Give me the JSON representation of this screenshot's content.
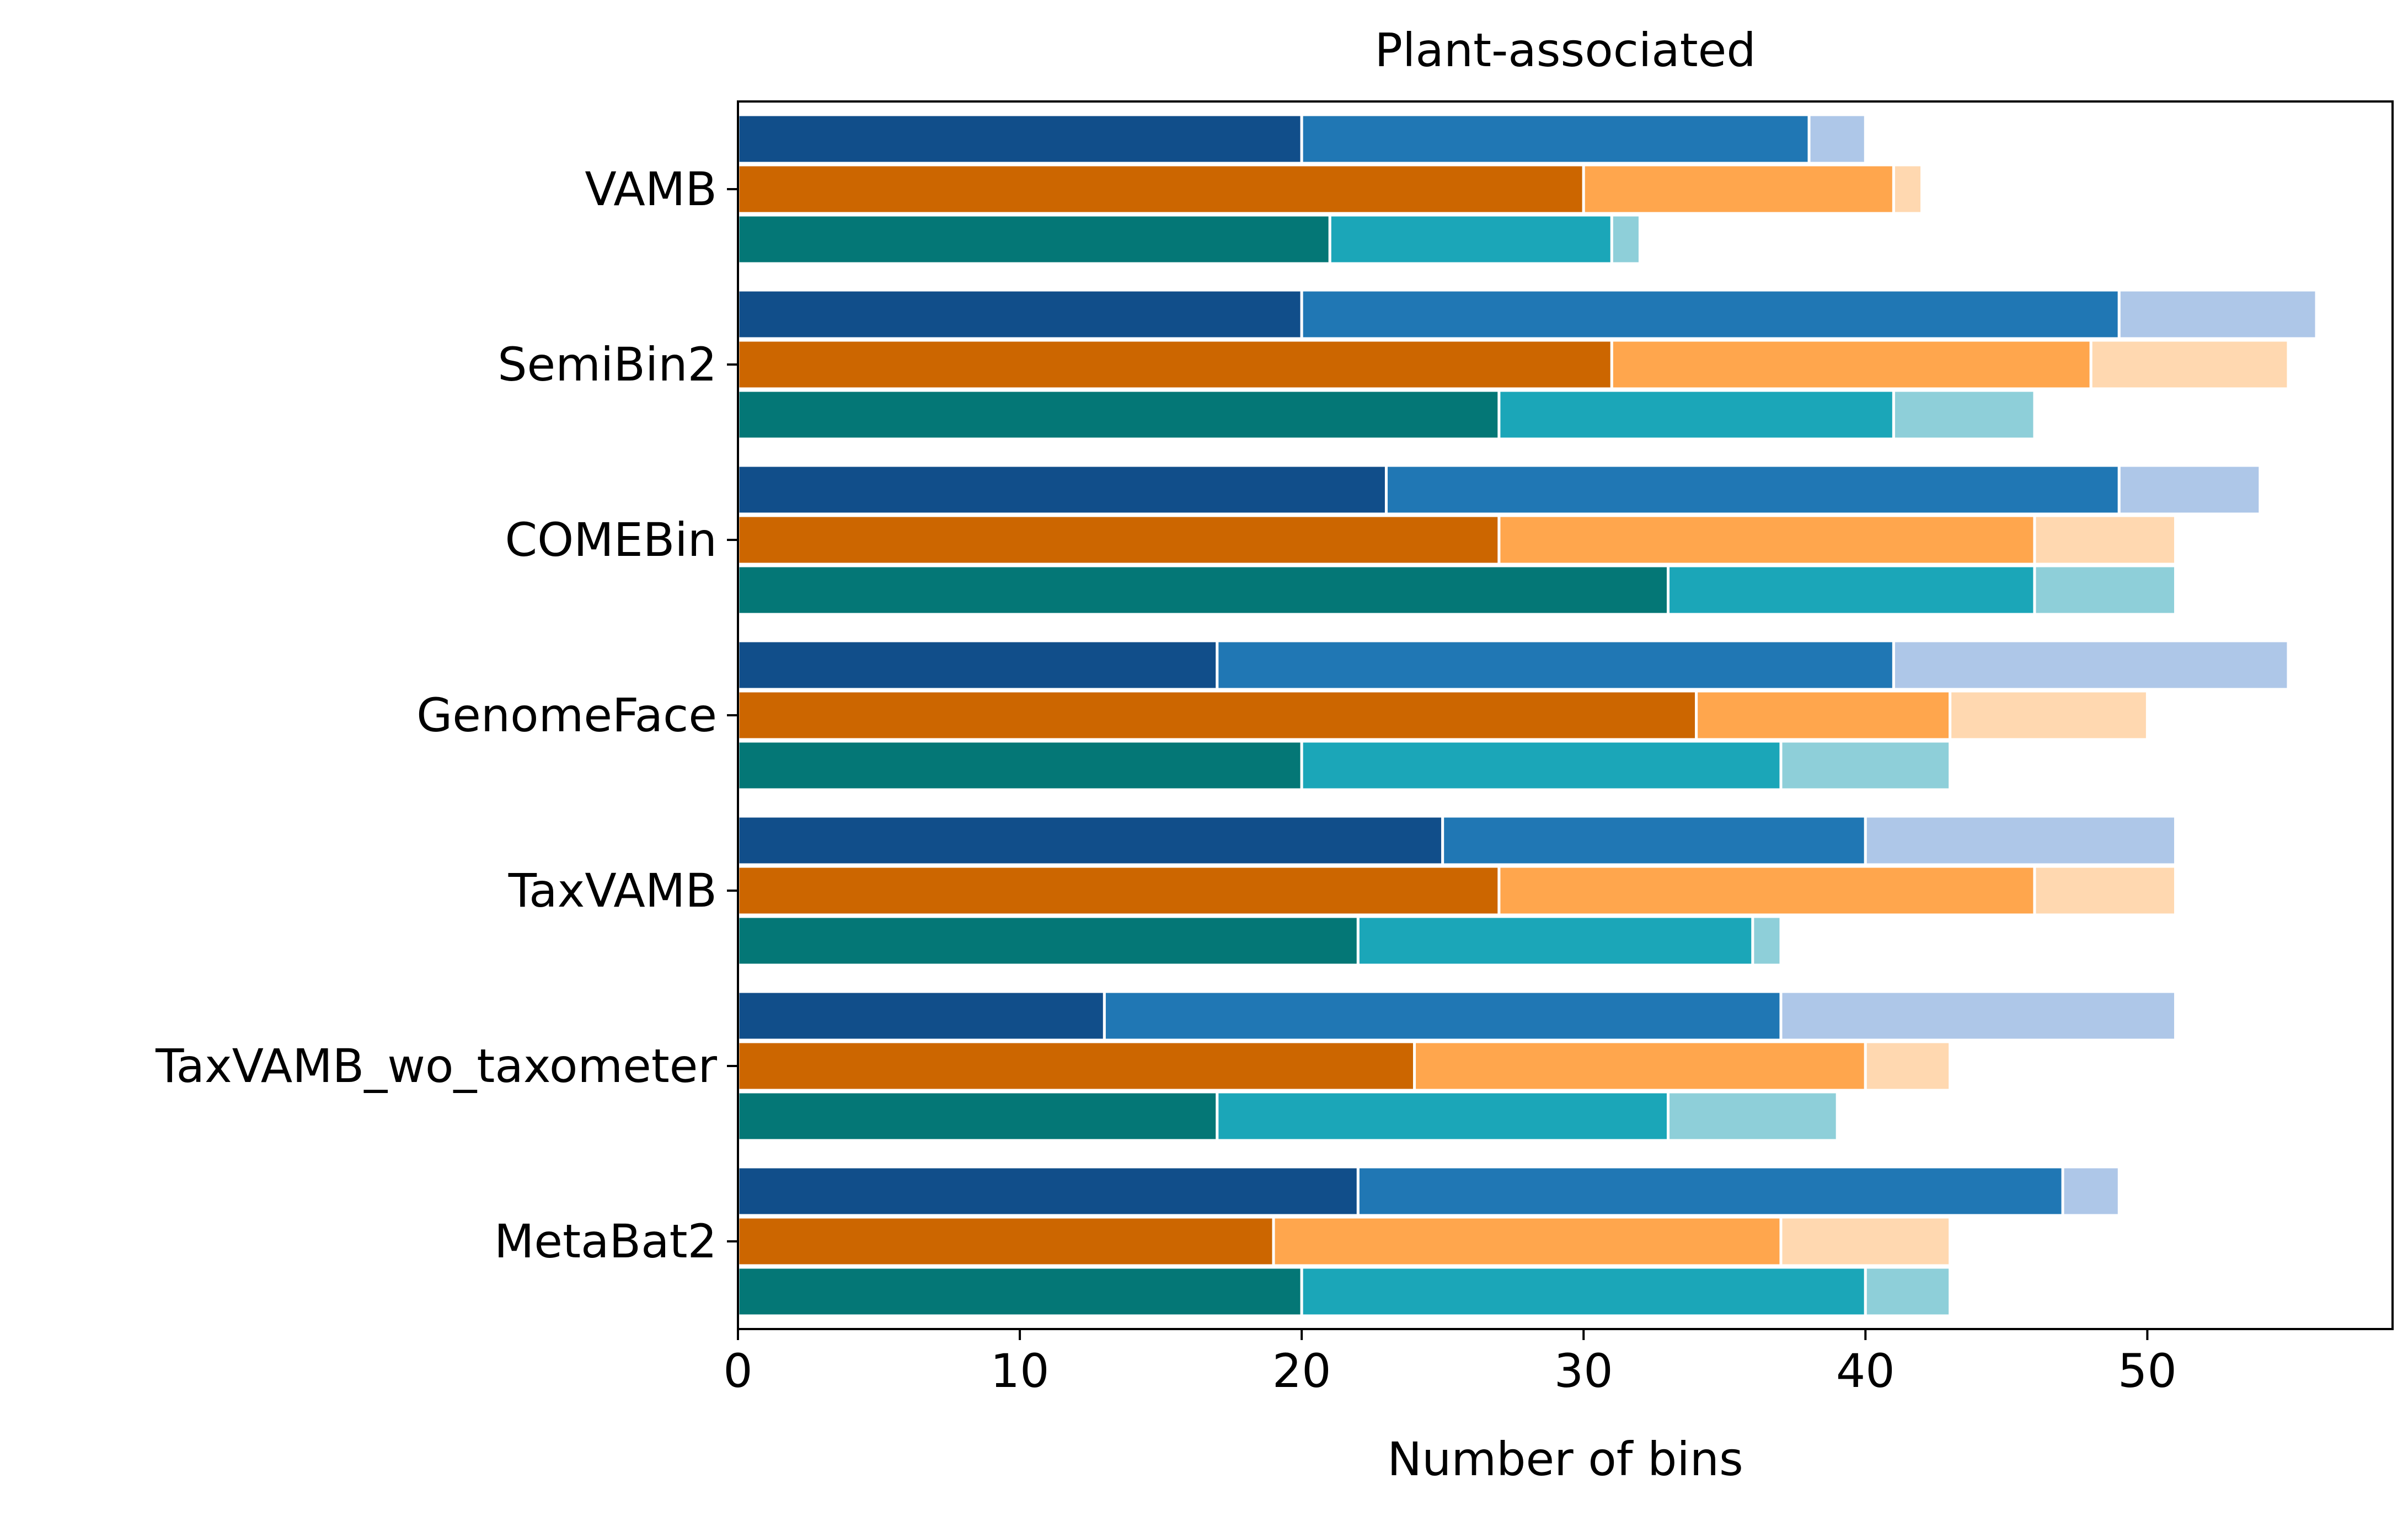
{
  "chart_data": {
    "type": "bar",
    "orientation": "horizontal",
    "stacked": true,
    "title": "Plant-associated",
    "xlabel": "Number of bins",
    "ylabel": "",
    "xlim": [
      0,
      58.7
    ],
    "xticks": [
      0,
      10,
      20,
      30,
      40,
      50
    ],
    "grid": false,
    "categories": [
      "VAMB",
      "SemiBin2",
      "COMEBin",
      "GenomeFace",
      "TaxVAMB",
      "TaxVAMB_wo_taxometer",
      "MetaBat2"
    ],
    "groups": [
      {
        "colors": [
          "#114e8a",
          "#2077b4",
          "#aec7e8"
        ],
        "stacks": [
          [
            20,
            38,
            40
          ],
          [
            20,
            49,
            56
          ],
          [
            23,
            49,
            54
          ],
          [
            17,
            41,
            55
          ],
          [
            25,
            40,
            51
          ],
          [
            13,
            37,
            51
          ],
          [
            22,
            47,
            49
          ]
        ]
      },
      {
        "colors": [
          "#cc6600",
          "#ffa64d",
          "#ffd8b0"
        ],
        "stacks": [
          [
            30,
            41,
            42
          ],
          [
            31,
            48,
            55
          ],
          [
            27,
            46,
            51
          ],
          [
            34,
            43,
            50
          ],
          [
            27,
            46,
            51
          ],
          [
            24,
            40,
            43
          ],
          [
            19,
            37,
            43
          ]
        ]
      },
      {
        "colors": [
          "#047776",
          "#1ba6b8",
          "#8ecfd9"
        ],
        "stacks": [
          [
            21,
            31,
            32
          ],
          [
            27,
            41,
            46
          ],
          [
            33,
            46,
            51
          ],
          [
            20,
            37,
            43
          ],
          [
            22,
            36,
            37
          ],
          [
            17,
            33,
            39
          ],
          [
            20,
            40,
            43
          ]
        ]
      }
    ]
  }
}
